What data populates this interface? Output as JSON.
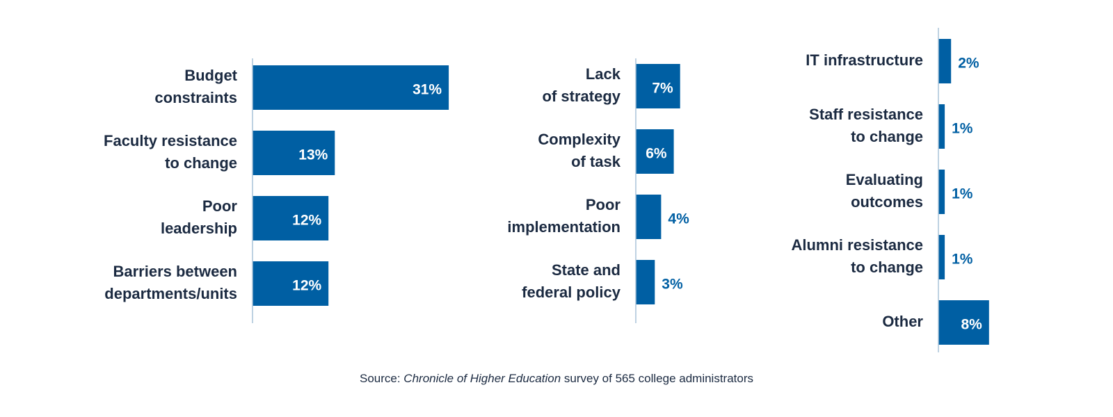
{
  "colors": {
    "bar": "#005fa3",
    "axis": "#a9c3d8",
    "label": "#1b2a41",
    "value_inside": "#ffffff",
    "value_outside": "#005fa3"
  },
  "chart_data": [
    {
      "type": "bar",
      "orientation": "horizontal",
      "unit": "%",
      "categories": [
        [
          "Budget",
          "constraints"
        ],
        [
          "Faculty resistance",
          "to change"
        ],
        [
          "Poor",
          "leadership"
        ],
        [
          "Barriers between",
          "departments/units"
        ]
      ],
      "values": [
        31,
        13,
        12,
        12
      ],
      "value_labels": [
        "31%",
        "13%",
        "12%",
        "12%"
      ]
    },
    {
      "type": "bar",
      "orientation": "horizontal",
      "unit": "%",
      "categories": [
        [
          "Lack",
          "of strategy"
        ],
        [
          "Complexity",
          "of task"
        ],
        [
          "Poor",
          "implementation"
        ],
        [
          "State and",
          "federal policy"
        ]
      ],
      "values": [
        7,
        6,
        4,
        3
      ],
      "value_labels": [
        "7%",
        "6%",
        "4%",
        "3%"
      ]
    },
    {
      "type": "bar",
      "orientation": "horizontal",
      "unit": "%",
      "categories": [
        [
          "IT infrastructure"
        ],
        [
          "Staff resistance",
          "to change"
        ],
        [
          "Evaluating",
          "outcomes"
        ],
        [
          "Alumni resistance",
          "to change"
        ],
        [
          "Other"
        ]
      ],
      "values": [
        2,
        1,
        1,
        1,
        8
      ],
      "value_labels": [
        "2%",
        "1%",
        "1%",
        "1%",
        "8%"
      ]
    }
  ],
  "source": {
    "prefix": "Source: ",
    "publication": "Chronicle of Higher Education",
    "suffix": " survey of 565 college administrators"
  }
}
